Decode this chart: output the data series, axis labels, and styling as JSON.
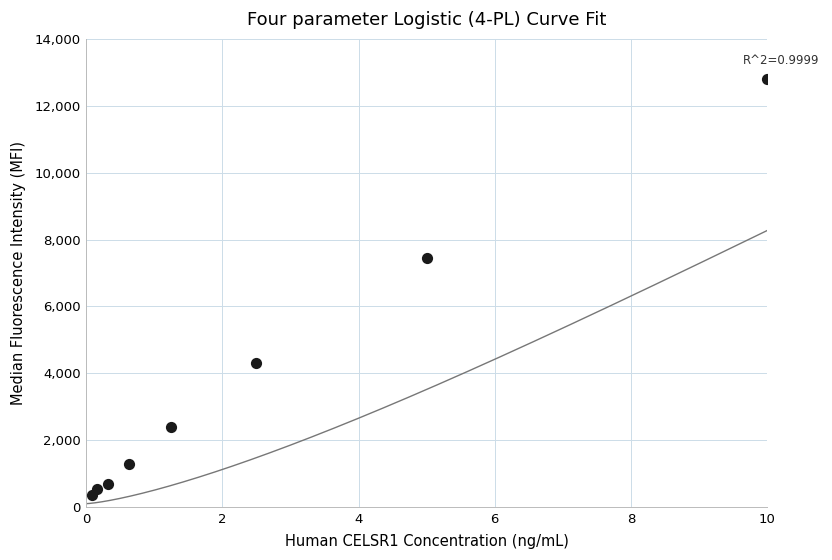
{
  "title": "Four parameter Logistic (4-PL) Curve Fit",
  "xlabel": "Human CELSR1 Concentration (ng/mL)",
  "ylabel": "Median Fluorescence Intensity (MFI)",
  "scatter_x": [
    0.078,
    0.156,
    0.313,
    0.625,
    1.25,
    2.5,
    5.0,
    10.0
  ],
  "scatter_y": [
    350,
    550,
    700,
    1300,
    2400,
    4300,
    7450,
    12800
  ],
  "xlim": [
    0,
    10
  ],
  "ylim": [
    0,
    14000
  ],
  "yticks": [
    0,
    2000,
    4000,
    6000,
    8000,
    10000,
    12000,
    14000
  ],
  "xticks": [
    0,
    2,
    4,
    6,
    8,
    10
  ],
  "r2_text": "R^2=0.9999",
  "r2_x": 9.65,
  "r2_y": 13150,
  "dot_color": "#1a1a1a",
  "line_color": "#777777",
  "grid_color": "#ccdce8",
  "background_color": "#ffffff",
  "title_fontsize": 13,
  "label_fontsize": 10.5,
  "tick_fontsize": 9.5,
  "4pl_A": 100,
  "4pl_D": 80000,
  "4pl_C": 50,
  "4pl_B": 1.35
}
